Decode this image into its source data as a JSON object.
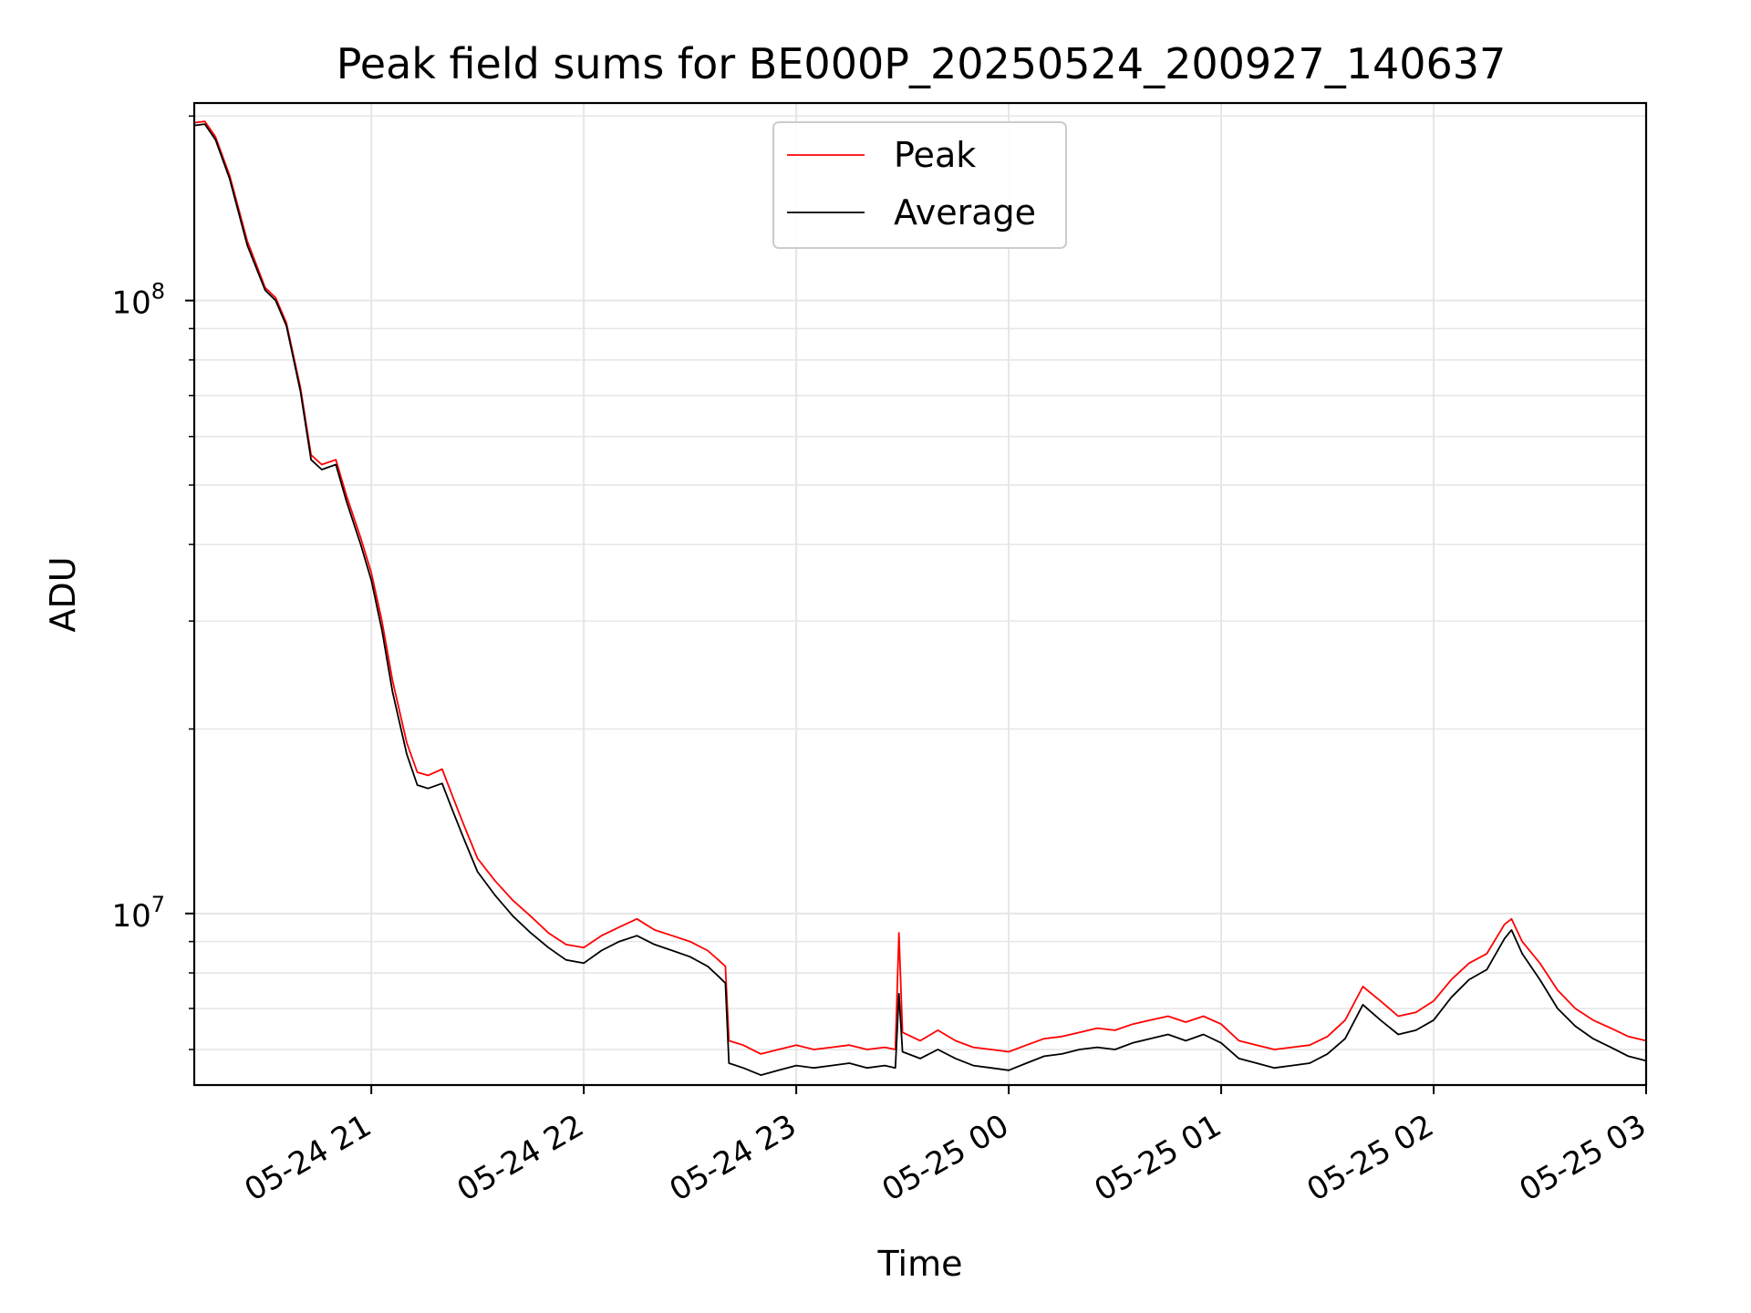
{
  "chart_data": {
    "type": "line",
    "title": "Peak field sums for BE000P_20250524_200927_140637",
    "xlabel": "Time",
    "ylabel": "ADU",
    "x_unit": "datetime",
    "xlim": [
      "2025-05-24 20:10",
      "2025-05-25 03:00"
    ],
    "ylim": [
      5250000,
      210000000
    ],
    "yscale": "log",
    "grid": true,
    "legend_position": "top-center",
    "x_ticks": [
      {
        "value": "2025-05-24 21:00",
        "label": "05-24 21"
      },
      {
        "value": "2025-05-24 22:00",
        "label": "05-24 22"
      },
      {
        "value": "2025-05-24 23:00",
        "label": "05-24 23"
      },
      {
        "value": "2025-05-25 00:00",
        "label": "05-25 00"
      },
      {
        "value": "2025-05-25 01:00",
        "label": "05-25 01"
      },
      {
        "value": "2025-05-25 02:00",
        "label": "05-25 02"
      },
      {
        "value": "2025-05-25 03:00",
        "label": "05-25 03"
      }
    ],
    "y_ticks": [
      {
        "value": 10000000,
        "base": "10",
        "exp": "7"
      },
      {
        "value": 100000000,
        "base": "10",
        "exp": "8"
      }
    ],
    "series": [
      {
        "name": "Peak",
        "color": "#ff0000",
        "points": [
          [
            "2025-05-24 20:10",
            195000000
          ],
          [
            "2025-05-24 20:13",
            196000000
          ],
          [
            "2025-05-24 20:16",
            185000000
          ],
          [
            "2025-05-24 20:20",
            160000000
          ],
          [
            "2025-05-24 20:25",
            125000000
          ],
          [
            "2025-05-24 20:30",
            105000000
          ],
          [
            "2025-05-24 20:33",
            101000000
          ],
          [
            "2025-05-24 20:36",
            92000000
          ],
          [
            "2025-05-24 20:40",
            72000000
          ],
          [
            "2025-05-24 20:43",
            56000000
          ],
          [
            "2025-05-24 20:46",
            54000000
          ],
          [
            "2025-05-24 20:50",
            55000000
          ],
          [
            "2025-05-24 20:53",
            48000000
          ],
          [
            "2025-05-24 20:57",
            41000000
          ],
          [
            "2025-05-24 21:00",
            36000000
          ],
          [
            "2025-05-24 21:03",
            30000000
          ],
          [
            "2025-05-24 21:06",
            24000000
          ],
          [
            "2025-05-24 21:10",
            19000000
          ],
          [
            "2025-05-24 21:13",
            17000000
          ],
          [
            "2025-05-24 21:16",
            16800000
          ],
          [
            "2025-05-24 21:20",
            17200000
          ],
          [
            "2025-05-24 21:23",
            15500000
          ],
          [
            "2025-05-24 21:26",
            14000000
          ],
          [
            "2025-05-24 21:30",
            12300000
          ],
          [
            "2025-05-24 21:35",
            11300000
          ],
          [
            "2025-05-24 21:40",
            10500000
          ],
          [
            "2025-05-24 21:45",
            9900000
          ],
          [
            "2025-05-24 21:50",
            9300000
          ],
          [
            "2025-05-24 21:55",
            8900000
          ],
          [
            "2025-05-24 22:00",
            8800000
          ],
          [
            "2025-05-24 22:05",
            9200000
          ],
          [
            "2025-05-24 22:10",
            9500000
          ],
          [
            "2025-05-24 22:15",
            9800000
          ],
          [
            "2025-05-24 22:20",
            9400000
          ],
          [
            "2025-05-24 22:25",
            9200000
          ],
          [
            "2025-05-24 22:30",
            9000000
          ],
          [
            "2025-05-24 22:35",
            8700000
          ],
          [
            "2025-05-24 22:38",
            8400000
          ],
          [
            "2025-05-24 22:40",
            8200000
          ],
          [
            "2025-05-24 22:41",
            6200000
          ],
          [
            "2025-05-24 22:45",
            6100000
          ],
          [
            "2025-05-24 22:50",
            5900000
          ],
          [
            "2025-05-24 22:55",
            6000000
          ],
          [
            "2025-05-24 23:00",
            6100000
          ],
          [
            "2025-05-24 23:05",
            6000000
          ],
          [
            "2025-05-24 23:10",
            6050000
          ],
          [
            "2025-05-24 23:15",
            6100000
          ],
          [
            "2025-05-24 23:20",
            6000000
          ],
          [
            "2025-05-24 23:25",
            6050000
          ],
          [
            "2025-05-24 23:28",
            6000000
          ],
          [
            "2025-05-24 23:29",
            9300000
          ],
          [
            "2025-05-24 23:30",
            6400000
          ],
          [
            "2025-05-24 23:35",
            6200000
          ],
          [
            "2025-05-24 23:40",
            6450000
          ],
          [
            "2025-05-24 23:45",
            6200000
          ],
          [
            "2025-05-24 23:50",
            6050000
          ],
          [
            "2025-05-24 23:55",
            6000000
          ],
          [
            "2025-05-25 00:00",
            5950000
          ],
          [
            "2025-05-25 00:05",
            6100000
          ],
          [
            "2025-05-25 00:10",
            6250000
          ],
          [
            "2025-05-25 00:15",
            6300000
          ],
          [
            "2025-05-25 00:20",
            6400000
          ],
          [
            "2025-05-25 00:25",
            6500000
          ],
          [
            "2025-05-25 00:30",
            6450000
          ],
          [
            "2025-05-25 00:35",
            6600000
          ],
          [
            "2025-05-25 00:40",
            6700000
          ],
          [
            "2025-05-25 00:45",
            6800000
          ],
          [
            "2025-05-25 00:50",
            6650000
          ],
          [
            "2025-05-25 00:55",
            6800000
          ],
          [
            "2025-05-25 01:00",
            6600000
          ],
          [
            "2025-05-25 01:05",
            6200000
          ],
          [
            "2025-05-25 01:10",
            6100000
          ],
          [
            "2025-05-25 01:15",
            6000000
          ],
          [
            "2025-05-25 01:20",
            6050000
          ],
          [
            "2025-05-25 01:25",
            6100000
          ],
          [
            "2025-05-25 01:30",
            6300000
          ],
          [
            "2025-05-25 01:35",
            6700000
          ],
          [
            "2025-05-25 01:40",
            7600000
          ],
          [
            "2025-05-25 01:45",
            7200000
          ],
          [
            "2025-05-25 01:50",
            6800000
          ],
          [
            "2025-05-25 01:55",
            6900000
          ],
          [
            "2025-05-25 02:00",
            7200000
          ],
          [
            "2025-05-25 02:05",
            7800000
          ],
          [
            "2025-05-25 02:10",
            8300000
          ],
          [
            "2025-05-25 02:15",
            8600000
          ],
          [
            "2025-05-25 02:20",
            9600000
          ],
          [
            "2025-05-25 02:22",
            9800000
          ],
          [
            "2025-05-25 02:25",
            9000000
          ],
          [
            "2025-05-25 02:30",
            8300000
          ],
          [
            "2025-05-25 02:35",
            7500000
          ],
          [
            "2025-05-25 02:40",
            7000000
          ],
          [
            "2025-05-25 02:45",
            6700000
          ],
          [
            "2025-05-25 02:50",
            6500000
          ],
          [
            "2025-05-25 02:55",
            6300000
          ],
          [
            "2025-05-25 03:00",
            6200000
          ]
        ]
      },
      {
        "name": "Average",
        "color": "#000000",
        "points": [
          [
            "2025-05-24 20:10",
            193000000
          ],
          [
            "2025-05-24 20:13",
            194000000
          ],
          [
            "2025-05-24 20:16",
            183000000
          ],
          [
            "2025-05-24 20:20",
            158000000
          ],
          [
            "2025-05-24 20:25",
            123000000
          ],
          [
            "2025-05-24 20:30",
            104000000
          ],
          [
            "2025-05-24 20:33",
            100000000
          ],
          [
            "2025-05-24 20:36",
            91000000
          ],
          [
            "2025-05-24 20:40",
            71000000
          ],
          [
            "2025-05-24 20:43",
            55000000
          ],
          [
            "2025-05-24 20:46",
            53000000
          ],
          [
            "2025-05-24 20:50",
            54000000
          ],
          [
            "2025-05-24 20:53",
            47000000
          ],
          [
            "2025-05-24 20:57",
            40000000
          ],
          [
            "2025-05-24 21:00",
            35000000
          ],
          [
            "2025-05-24 21:03",
            29000000
          ],
          [
            "2025-05-24 21:06",
            23000000
          ],
          [
            "2025-05-24 21:10",
            18200000
          ],
          [
            "2025-05-24 21:13",
            16200000
          ],
          [
            "2025-05-24 21:16",
            16000000
          ],
          [
            "2025-05-24 21:20",
            16300000
          ],
          [
            "2025-05-24 21:23",
            14700000
          ],
          [
            "2025-05-24 21:26",
            13300000
          ],
          [
            "2025-05-24 21:30",
            11700000
          ],
          [
            "2025-05-24 21:35",
            10700000
          ],
          [
            "2025-05-24 21:40",
            9900000
          ],
          [
            "2025-05-24 21:45",
            9300000
          ],
          [
            "2025-05-24 21:50",
            8800000
          ],
          [
            "2025-05-24 21:55",
            8400000
          ],
          [
            "2025-05-24 22:00",
            8300000
          ],
          [
            "2025-05-24 22:05",
            8700000
          ],
          [
            "2025-05-24 22:10",
            9000000
          ],
          [
            "2025-05-24 22:15",
            9200000
          ],
          [
            "2025-05-24 22:20",
            8900000
          ],
          [
            "2025-05-24 22:25",
            8700000
          ],
          [
            "2025-05-24 22:30",
            8500000
          ],
          [
            "2025-05-24 22:35",
            8200000
          ],
          [
            "2025-05-24 22:38",
            7900000
          ],
          [
            "2025-05-24 22:40",
            7700000
          ],
          [
            "2025-05-24 22:41",
            5700000
          ],
          [
            "2025-05-24 22:45",
            5600000
          ],
          [
            "2025-05-24 22:50",
            5450000
          ],
          [
            "2025-05-24 22:55",
            5550000
          ],
          [
            "2025-05-24 23:00",
            5650000
          ],
          [
            "2025-05-24 23:05",
            5600000
          ],
          [
            "2025-05-24 23:10",
            5650000
          ],
          [
            "2025-05-24 23:15",
            5700000
          ],
          [
            "2025-05-24 23:20",
            5600000
          ],
          [
            "2025-05-24 23:25",
            5650000
          ],
          [
            "2025-05-24 23:28",
            5600000
          ],
          [
            "2025-05-24 23:29",
            7400000
          ],
          [
            "2025-05-24 23:30",
            5950000
          ],
          [
            "2025-05-24 23:35",
            5800000
          ],
          [
            "2025-05-24 23:40",
            6000000
          ],
          [
            "2025-05-24 23:45",
            5800000
          ],
          [
            "2025-05-24 23:50",
            5650000
          ],
          [
            "2025-05-24 23:55",
            5600000
          ],
          [
            "2025-05-25 00:00",
            5550000
          ],
          [
            "2025-05-25 00:05",
            5700000
          ],
          [
            "2025-05-25 00:10",
            5850000
          ],
          [
            "2025-05-25 00:15",
            5900000
          ],
          [
            "2025-05-25 00:20",
            6000000
          ],
          [
            "2025-05-25 00:25",
            6050000
          ],
          [
            "2025-05-25 00:30",
            6000000
          ],
          [
            "2025-05-25 00:35",
            6150000
          ],
          [
            "2025-05-25 00:40",
            6250000
          ],
          [
            "2025-05-25 00:45",
            6350000
          ],
          [
            "2025-05-25 00:50",
            6200000
          ],
          [
            "2025-05-25 00:55",
            6350000
          ],
          [
            "2025-05-25 01:00",
            6150000
          ],
          [
            "2025-05-25 01:05",
            5800000
          ],
          [
            "2025-05-25 01:10",
            5700000
          ],
          [
            "2025-05-25 01:15",
            5600000
          ],
          [
            "2025-05-25 01:20",
            5650000
          ],
          [
            "2025-05-25 01:25",
            5700000
          ],
          [
            "2025-05-25 01:30",
            5900000
          ],
          [
            "2025-05-25 01:35",
            6250000
          ],
          [
            "2025-05-25 01:40",
            7100000
          ],
          [
            "2025-05-25 01:45",
            6700000
          ],
          [
            "2025-05-25 01:50",
            6350000
          ],
          [
            "2025-05-25 01:55",
            6450000
          ],
          [
            "2025-05-25 02:00",
            6700000
          ],
          [
            "2025-05-25 02:05",
            7300000
          ],
          [
            "2025-05-25 02:10",
            7800000
          ],
          [
            "2025-05-25 02:15",
            8100000
          ],
          [
            "2025-05-25 02:20",
            9100000
          ],
          [
            "2025-05-25 02:22",
            9400000
          ],
          [
            "2025-05-25 02:25",
            8600000
          ],
          [
            "2025-05-25 02:30",
            7800000
          ],
          [
            "2025-05-25 02:35",
            7000000
          ],
          [
            "2025-05-25 02:40",
            6550000
          ],
          [
            "2025-05-25 02:45",
            6250000
          ],
          [
            "2025-05-25 02:50",
            6050000
          ],
          [
            "2025-05-25 02:55",
            5850000
          ],
          [
            "2025-05-25 03:00",
            5750000
          ]
        ]
      }
    ]
  }
}
